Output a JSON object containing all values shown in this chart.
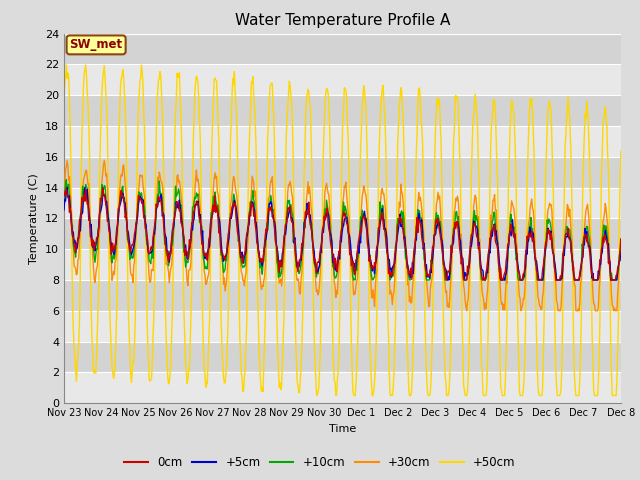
{
  "title": "Water Temperature Profile A",
  "xlabel": "Time",
  "ylabel": "Temperature (C)",
  "ylim": [
    0,
    24
  ],
  "yticks": [
    0,
    2,
    4,
    6,
    8,
    10,
    12,
    14,
    16,
    18,
    20,
    22,
    24
  ],
  "annotation_text": "SW_met",
  "annotation_color": "#8B0000",
  "annotation_bg": "#FFFF99",
  "annotation_border": "#8B4513",
  "bg_color": "#DCDCDC",
  "plot_bg_light": "#E8E8E8",
  "plot_bg_dark": "#D3D3D3",
  "grid_color": "#FFFFFF",
  "line_colors": {
    "0cm": "#CC0000",
    "+5cm": "#0000CC",
    "+10cm": "#00AA00",
    "+30cm": "#FF8C00",
    "+50cm": "#FFD700"
  },
  "x_tick_labels": [
    "Nov 23",
    "Nov 24",
    "Nov 25",
    "Nov 26",
    "Nov 27",
    "Nov 28",
    "Nov 29",
    "Nov 30",
    "Dec 1",
    "Dec 2",
    "Dec 3",
    "Dec 4",
    "Dec 5",
    "Dec 6",
    "Dec 7",
    "Dec 8"
  ],
  "legend_labels": [
    "0cm",
    "+5cm",
    "+10cm",
    "+30cm",
    "+50cm"
  ]
}
